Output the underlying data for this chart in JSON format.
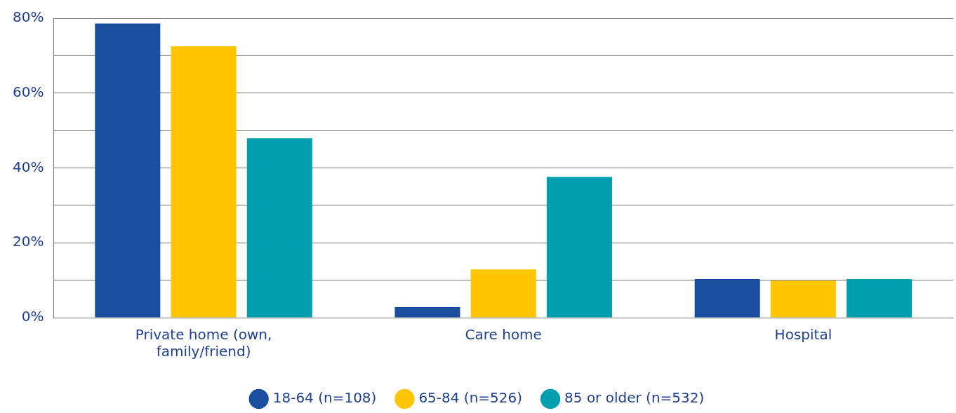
{
  "chart_data": {
    "type": "bar",
    "categories": [
      "Private home (own, family/friend)",
      "Care home",
      "Hospital"
    ],
    "series": [
      {
        "name": "18-64 (n=108)",
        "color": "#1a4f9f",
        "values": [
          78.6,
          2.8,
          10.3
        ]
      },
      {
        "name": "65-84 (n=526)",
        "color": "#ffc600",
        "values": [
          72.5,
          12.9,
          9.9
        ]
      },
      {
        "name": "85 or older (n=532)",
        "color": "#009faf",
        "values": [
          47.9,
          37.6,
          10.3
        ]
      }
    ],
    "ylim": [
      0,
      80
    ],
    "yticks": [
      {
        "value": 0,
        "label": "0%"
      },
      {
        "value": 10,
        "label": null
      },
      {
        "value": 20,
        "label": "20%"
      },
      {
        "value": 30,
        "label": null
      },
      {
        "value": 40,
        "label": "40%"
      },
      {
        "value": 50,
        "label": null
      },
      {
        "value": 60,
        "label": "60%"
      },
      {
        "value": 70,
        "label": null
      },
      {
        "value": 80,
        "label": "80%"
      }
    ],
    "grid": "y",
    "legend": "bottom",
    "marker": "circle"
  }
}
